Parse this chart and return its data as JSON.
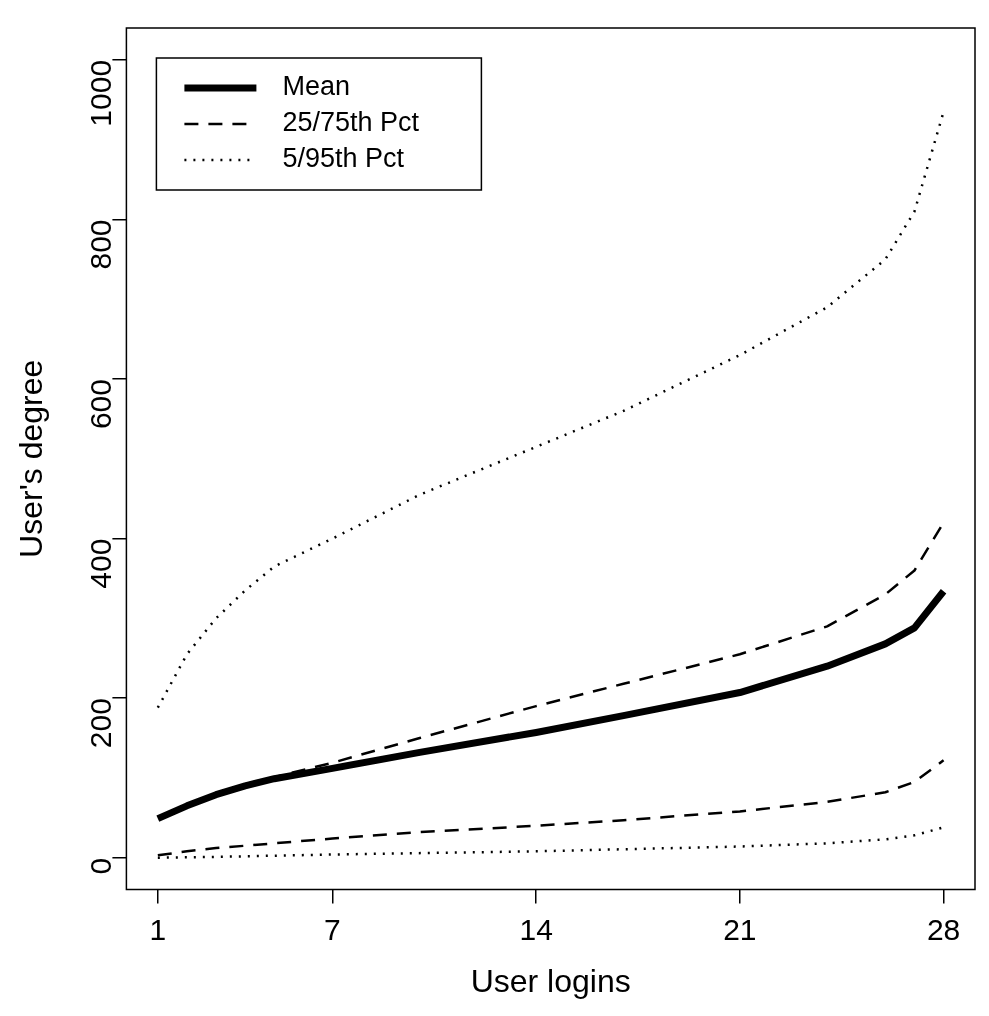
{
  "chart_data": {
    "type": "line",
    "xlabel": "User logins",
    "ylabel": "User's degree",
    "xlim": [
      -0.08,
      29.08
    ],
    "xticks": [
      1,
      7,
      14,
      21,
      28
    ],
    "ylim": [
      -40,
      1040
    ],
    "yticks": [
      0,
      200,
      400,
      600,
      800,
      1000
    ],
    "grid": false,
    "legend": "top left",
    "marker": "none",
    "series": [
      {
        "name": "Mean",
        "color": "#000000",
        "line_style": "solid",
        "x": [
          1,
          2,
          3,
          4,
          5,
          7,
          10,
          14,
          17,
          21,
          24,
          26,
          27,
          28
        ],
        "values": [
          49,
          65,
          79,
          90,
          99,
          112,
          132,
          157,
          178,
          207,
          240,
          268,
          288,
          334
        ]
      },
      {
        "name": "25/75th Pct",
        "color": "#000000",
        "line_style": "dashed",
        "x": [
          1,
          2,
          3,
          4,
          5,
          7,
          10,
          14,
          17,
          21,
          24,
          26,
          27,
          28
        ],
        "values": [
          3,
          8,
          12,
          15,
          18,
          24,
          32,
          40,
          47,
          58,
          70,
          82,
          95,
          122
        ]
      },
      {
        "color": "#000000",
        "line_style": "dashed",
        "x": [
          4,
          5,
          7,
          10,
          14,
          17,
          21,
          24,
          26,
          27,
          28
        ],
        "values": [
          92,
          101,
          119,
          150,
          190,
          218,
          255,
          290,
          330,
          360,
          420
        ]
      },
      {
        "name": "5/95th Pct",
        "color": "#000000",
        "line_style": "dotted",
        "x": [
          1,
          3,
          7,
          14,
          21,
          24,
          26,
          27,
          28
        ],
        "values": [
          0,
          1,
          4,
          8,
          14,
          18,
          23,
          28,
          38
        ]
      },
      {
        "color": "#000000",
        "line_style": "dotted",
        "x": [
          1,
          2,
          3,
          4,
          5,
          7,
          10,
          14,
          17,
          21,
          24,
          26,
          27,
          28
        ],
        "values": [
          188,
          255,
          300,
          335,
          365,
          400,
          455,
          515,
          560,
          630,
          690,
          750,
          810,
          935
        ]
      }
    ]
  }
}
